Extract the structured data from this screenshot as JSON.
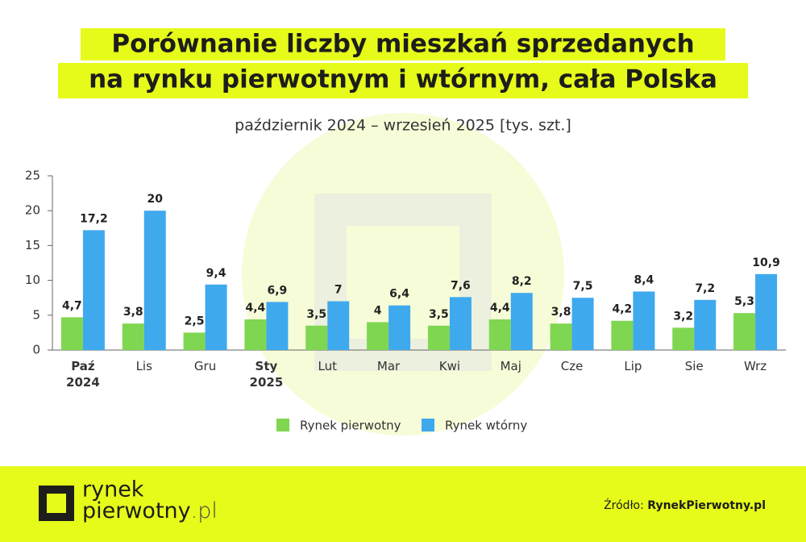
{
  "chart_data": {
    "type": "bar",
    "title": [
      "Porównanie liczby mieszkań sprzedanych",
      "na rynku pierwotnym i wtórnym, cała Polska"
    ],
    "subtitle": "październik 2024 – wrzesień 2025 [tys. szt.]",
    "categories": [
      "Paź\n2024",
      "Lis",
      "Gru",
      "Sty\n2025",
      "Lut",
      "Mar",
      "Kwi",
      "Maj",
      "Cze",
      "Lip",
      "Sie",
      "Wrz"
    ],
    "series": [
      {
        "name": "Rynek pierwotny",
        "color": "#7fd650",
        "values": [
          4.7,
          3.8,
          2.5,
          4.4,
          3.5,
          4,
          3.5,
          4.4,
          3.8,
          4.2,
          3.2,
          5.3
        ],
        "value_labels": [
          "4,7",
          "3,8",
          "2,5",
          "4,4",
          "3,5",
          "4",
          "3,5",
          "4,4",
          "3,8",
          "4,2",
          "3,2",
          "5,3"
        ]
      },
      {
        "name": "Rynek wtórny",
        "color": "#3fa9ee",
        "values": [
          17.2,
          20,
          9.4,
          6.9,
          7,
          6.4,
          7.6,
          8.2,
          7.5,
          8.4,
          7.2,
          10.9
        ],
        "value_labels": [
          "17,2",
          "20",
          "9,4",
          "6,9",
          "7",
          "6,4",
          "7,6",
          "8,2",
          "7,5",
          "8,4",
          "7,2",
          "10,9"
        ]
      }
    ],
    "ylim": [
      0,
      25
    ],
    "yticks": [
      0,
      5,
      10,
      15,
      20,
      25
    ],
    "legend": "bottom"
  },
  "footer": {
    "logo_top": "rynek",
    "logo_bottom": "pierwotny",
    "logo_suffix": ".pl",
    "source_label": "Źródło:",
    "source": "RynekPierwotny.pl"
  }
}
